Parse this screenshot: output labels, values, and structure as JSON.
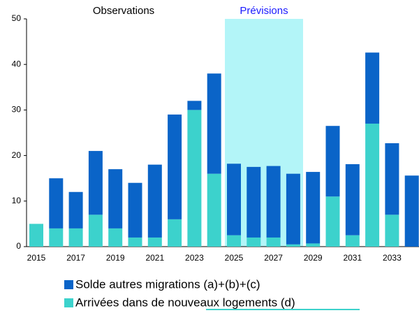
{
  "chart_data": {
    "type": "bar",
    "stacked": true,
    "annotations": [
      "Observations",
      "Prévisions"
    ],
    "categories": [
      "2015",
      null,
      "2017",
      null,
      "2019",
      null,
      "2021",
      null,
      "2023",
      null,
      "2025",
      null,
      "2027",
      null,
      "2029",
      null,
      "2031",
      null,
      "2033",
      null
    ],
    "series": [
      {
        "name": "Solde autres migrations (a)+(b)+(c)",
        "color": "#0a64c8",
        "values": [
          0,
          11,
          8,
          14,
          13,
          12,
          16,
          23,
          2,
          22,
          15.7,
          15.5,
          15.7,
          15.5,
          15.7,
          15.5,
          15.6,
          15.6,
          15.7,
          15.6
        ]
      },
      {
        "name": "Arrivées dans de nouveaux logements (d)",
        "color": "#3cd2cc",
        "values": [
          5,
          4,
          4,
          7,
          4,
          2,
          2,
          6,
          30,
          16,
          2.5,
          2,
          2,
          0.5,
          0.7,
          11,
          2.5,
          27,
          7,
          0
        ]
      }
    ],
    "ylim": [
      0,
      50
    ],
    "yticks": [
      0,
      10,
      20,
      30,
      40,
      50
    ],
    "grid": false
  }
}
